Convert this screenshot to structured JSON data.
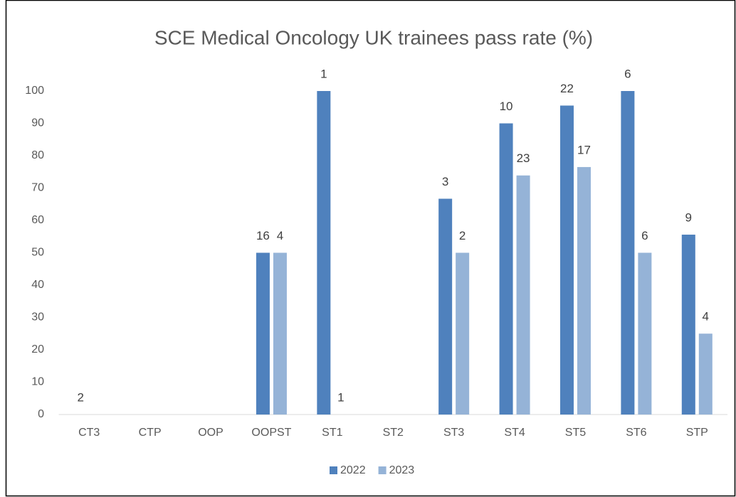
{
  "chart_data": {
    "type": "bar",
    "title": "SCE Medical Oncology UK trainees pass rate (%)",
    "categories": [
      "CT3",
      "CTP",
      "OOP",
      "OOPST",
      "ST1",
      "ST2",
      "ST3",
      "ST4",
      "ST5",
      "ST6",
      "STP"
    ],
    "series": [
      {
        "name": "2022",
        "color": "#4f81bd",
        "values": [
          0,
          null,
          null,
          50,
          100,
          null,
          66.7,
          90,
          95.5,
          100,
          55.6
        ],
        "counts": [
          "2",
          null,
          null,
          "16",
          "1",
          null,
          "3",
          "10",
          "22",
          "6",
          "9"
        ]
      },
      {
        "name": "2023",
        "color": "#95b3d7",
        "values": [
          null,
          null,
          null,
          50,
          0,
          null,
          50,
          73.9,
          76.5,
          50,
          25
        ],
        "counts": [
          null,
          null,
          null,
          "4",
          "1",
          null,
          "2",
          "23",
          "17",
          "6",
          "4"
        ]
      }
    ],
    "ylim": [
      0,
      100
    ],
    "yticks": [
      0,
      10,
      20,
      30,
      40,
      50,
      60,
      70,
      80,
      90,
      100
    ],
    "grid": false,
    "legend": "bottom"
  }
}
